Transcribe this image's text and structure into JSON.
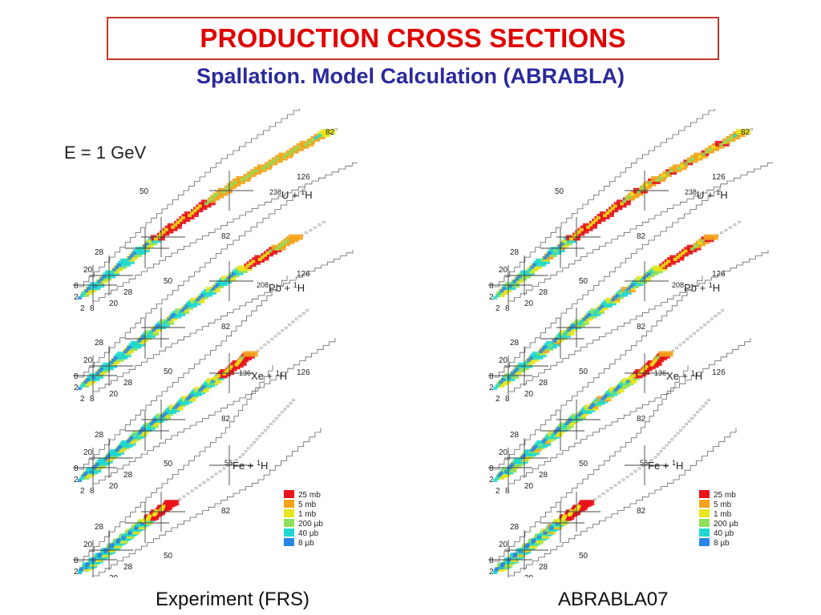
{
  "header": {
    "title": "PRODUCTION CROSS SECTIONS",
    "subtitle": "Spallation.  Model Calculation (ABRABLA)"
  },
  "energy_label": "E = 1 GeV",
  "panels": [
    {
      "id": "experiment",
      "caption": "Experiment (FRS)",
      "show_energy": true
    },
    {
      "id": "model",
      "caption": "ABRABLA07",
      "show_energy": false
    }
  ],
  "reactions": [
    {
      "target": "U",
      "mass": "238",
      "projectile": "H",
      "projectile_mass": "1"
    },
    {
      "target": "Pb",
      "mass": "208",
      "projectile": "H",
      "projectile_mass": "1"
    },
    {
      "target": "Xe",
      "mass": "136",
      "projectile": "H",
      "projectile_mass": "1"
    },
    {
      "target": "Fe",
      "mass": "56",
      "projectile": "H",
      "projectile_mass": "1"
    }
  ],
  "magic_numbers": [
    "2",
    "8",
    "20",
    "28",
    "50",
    "82",
    "126"
  ],
  "legend": [
    {
      "label": "25 mb",
      "color": "#e8131b"
    },
    {
      "label": "5 mb",
      "color": "#f5a31a"
    },
    {
      "label": "1 mb",
      "color": "#e6e61a"
    },
    {
      "label": "200 µb",
      "color": "#8fe05a"
    },
    {
      "label": "40 µb",
      "color": "#1fd8cf"
    },
    {
      "label": "8 µb",
      "color": "#2a86e6"
    }
  ]
}
